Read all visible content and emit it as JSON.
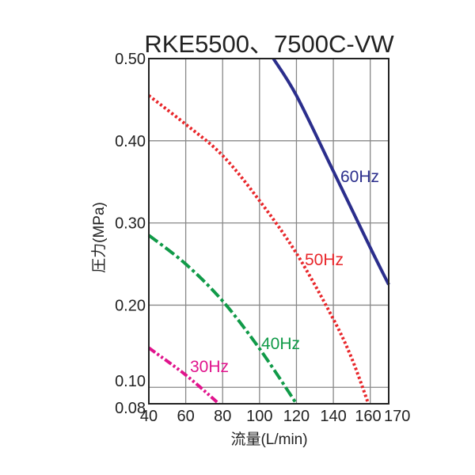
{
  "chart_data": {
    "type": "line",
    "title": "RKE5500、7500C-VW",
    "xlabel": "流量(L/min)",
    "ylabel": "圧力(MPa)",
    "xlim": [
      40,
      170
    ],
    "ylim": [
      0.08,
      0.5
    ],
    "xticks": [
      40,
      60,
      80,
      100,
      120,
      140,
      160,
      170
    ],
    "xtick_labels": [
      "40",
      "60",
      "80",
      "100",
      "120",
      "140",
      "160",
      "170"
    ],
    "yticks": [
      0.08,
      0.1,
      0.2,
      0.3,
      0.4,
      0.5
    ],
    "ytick_labels": [
      "0.08",
      "0.10",
      "0.20",
      "0.30",
      "0.40",
      "0.50"
    ],
    "grid": true,
    "legend": "inline labels",
    "series": [
      {
        "name": "60Hz",
        "color": "#2b2e8c",
        "style": "solid",
        "x": [
          107.5,
          120,
          140,
          160,
          170
        ],
        "y": [
          0.5,
          0.455,
          0.363,
          0.27,
          0.225
        ]
      },
      {
        "name": "50Hz",
        "color": "#e8262a",
        "style": "dotted",
        "x": [
          40,
          60,
          80,
          100,
          120,
          140,
          150,
          159
        ],
        "y": [
          0.455,
          0.42,
          0.382,
          0.327,
          0.263,
          0.183,
          0.135,
          0.08
        ]
      },
      {
        "name": "40Hz",
        "color": "#109a48",
        "style": "dash-dot",
        "x": [
          40,
          60,
          80,
          100,
          120
        ],
        "y": [
          0.285,
          0.25,
          0.205,
          0.147,
          0.08
        ]
      },
      {
        "name": "30Hz",
        "color": "#e0138c",
        "style": "dash-dot-dot",
        "x": [
          40,
          60,
          78
        ],
        "y": [
          0.148,
          0.115,
          0.08
        ]
      }
    ]
  }
}
